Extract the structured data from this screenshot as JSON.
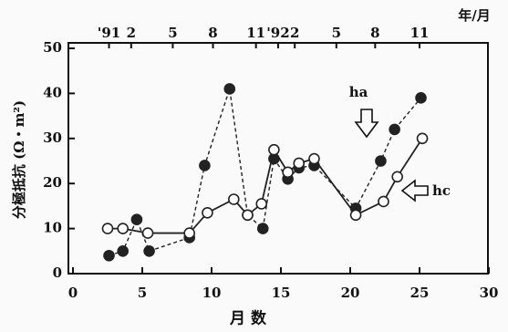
{
  "chart_data": {
    "type": "line",
    "ylabel": "分極抵抗 (Ω・m²)",
    "xlabel": "月 数",
    "top_axis_label": "年/月",
    "xlim": [
      0,
      30
    ],
    "xticks": [
      0,
      5,
      10,
      15,
      20,
      25,
      30
    ],
    "ylim": [
      0,
      50
    ],
    "yticks": [
      0,
      10,
      20,
      30,
      40,
      50
    ],
    "top_xticks": [
      {
        "value": 2.6,
        "label": "'91"
      },
      {
        "value": 4.2,
        "label": "2"
      },
      {
        "value": 7.2,
        "label": "5"
      },
      {
        "value": 10.1,
        "label": "8"
      },
      {
        "value": 13.2,
        "label": "11"
      },
      {
        "value": 14.8,
        "label": "'92"
      },
      {
        "value": 16,
        "label": "2"
      },
      {
        "value": 19,
        "label": "5"
      },
      {
        "value": 21.8,
        "label": "8"
      },
      {
        "value": 25,
        "label": "11"
      }
    ],
    "series": [
      {
        "name": "ha",
        "color": "#222",
        "marker": "filled",
        "dashed": true,
        "x": [
          2.6,
          3.6,
          4.6,
          5.5,
          8.4,
          9.5,
          11.3,
          12.6,
          13.7,
          14.5,
          15.5,
          16.3,
          17.4,
          20.4,
          22.2,
          23.2,
          25.1
        ],
        "values": [
          4,
          5,
          12,
          5,
          8,
          24,
          41,
          13,
          10,
          25.5,
          21,
          23.5,
          24,
          14.5,
          25,
          32,
          39
        ]
      },
      {
        "name": "hc",
        "color": "#222",
        "marker": "open",
        "dashed": false,
        "x": [
          2.5,
          3.6,
          5.4,
          8.4,
          9.7,
          11.6,
          12.6,
          13.6,
          14.5,
          15.5,
          16.3,
          17.4,
          20.4,
          22.4,
          23.4,
          25.2
        ],
        "values": [
          10,
          10,
          9,
          9,
          13.5,
          16.5,
          13,
          15.5,
          27.5,
          22.5,
          24.5,
          25.5,
          13,
          16,
          21.5,
          30
        ]
      }
    ]
  }
}
